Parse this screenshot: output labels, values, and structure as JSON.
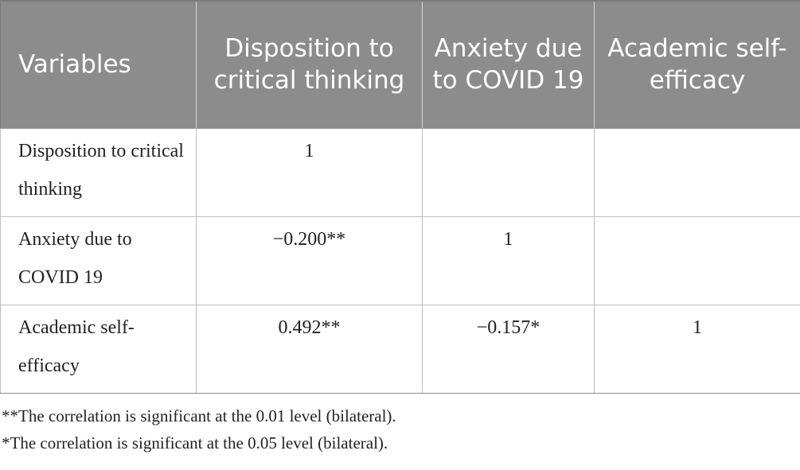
{
  "table": {
    "headers": [
      "Variables",
      "Disposition to critical thinking",
      "Anxiety due to COVID 19",
      "Academic self-efficacy"
    ],
    "rows": [
      {
        "label": "Disposition to critical thinking",
        "cells": [
          "1",
          "",
          ""
        ]
      },
      {
        "label": "Anxiety due to COVID 19",
        "cells": [
          "−0.200**",
          "1",
          ""
        ]
      },
      {
        "label": "Academic self-efficacy",
        "cells": [
          "0.492**",
          "−0.157*",
          "1"
        ]
      }
    ]
  },
  "notes": [
    "**The correlation is significant at the 0.01 level (bilateral).",
    "*The correlation is significant at the 0.05 level (bilateral)."
  ]
}
